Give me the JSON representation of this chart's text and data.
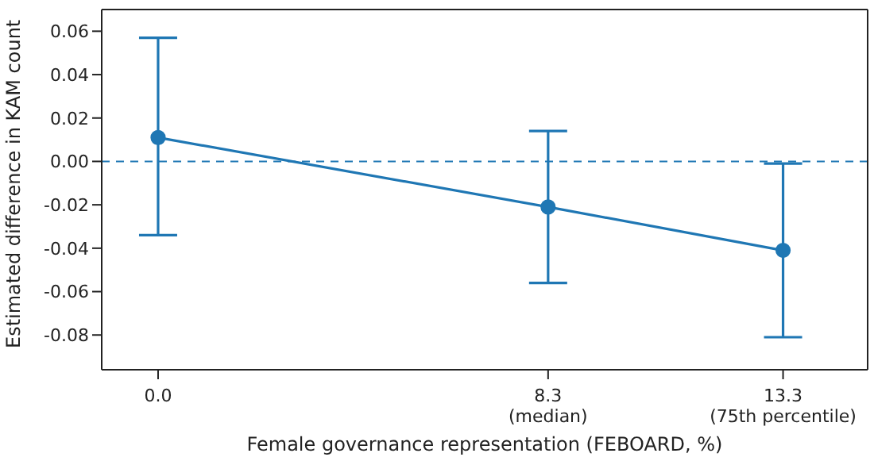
{
  "chart_data": {
    "type": "line",
    "xlabel": "Female governance representation (FEBOARD, %)",
    "ylabel": "Estimated difference in KAM count",
    "x": [
      0,
      8.3,
      13.3
    ],
    "series": [
      {
        "color": "#1f77b4",
        "values": [
          0.011,
          -0.021,
          -0.041
        ],
        "errors": [
          [
            -0.034,
            0.057
          ],
          [
            -0.056,
            0.014
          ],
          [
            -0.081,
            -0.001
          ]
        ]
      }
    ],
    "xlim": [
      -1.2,
      15.1
    ],
    "xticks": [
      {
        "value": 0,
        "label": "0.0"
      },
      {
        "value": 8.3,
        "label": "8.3\n(median)"
      },
      {
        "value": 13.3,
        "label": "13.3\n(75th percentile)"
      }
    ],
    "ylim": [
      -0.096,
      0.07
    ],
    "yticks": [
      -0.08,
      -0.06,
      -0.04,
      -0.02,
      {
        "value": 0,
        "label": "0.00"
      },
      0.02,
      0.04,
      0.06
    ],
    "ref_lines": [
      {
        "axis": "y",
        "value": 0,
        "color": "#1f77b4",
        "line_style": "dashed"
      }
    ],
    "marker": "circle",
    "line_style": "solid",
    "grid": false
  }
}
